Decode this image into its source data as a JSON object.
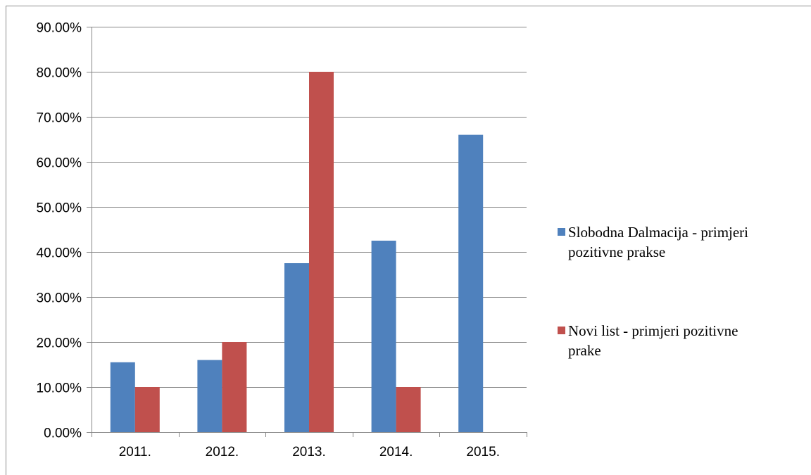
{
  "chart_data": {
    "type": "bar",
    "title": "",
    "xlabel": "",
    "ylabel": "",
    "categories": [
      "2011.",
      "2012.",
      "2013.",
      "2014.",
      "2015."
    ],
    "series": [
      {
        "name": "Slobodna Dalmacija - primjeri pozitivne prakse",
        "name_lines": [
          "Slobodna Dalmacija - primjeri",
          "pozitivne prakse"
        ],
        "color": "#4f81bd",
        "values": [
          0.155,
          0.16,
          0.375,
          0.425,
          0.66
        ]
      },
      {
        "name": "Novi list - primjeri pozitivne prake",
        "name_lines": [
          "Novi list - primjeri pozitivne",
          "prake"
        ],
        "color": "#c0504d",
        "values": [
          0.1,
          0.2,
          0.8,
          0.1,
          null
        ]
      }
    ],
    "ylim": [
      0,
      0.9
    ],
    "yticks": [
      0,
      0.1,
      0.2,
      0.3,
      0.4,
      0.5,
      0.6,
      0.7,
      0.8,
      0.9
    ],
    "ytick_labels": [
      "0.00%",
      "10.00%",
      "20.00%",
      "30.00%",
      "40.00%",
      "50.00%",
      "60.00%",
      "70.00%",
      "80.00%",
      "90.00%"
    ],
    "grid": true,
    "legend_position": "right",
    "grid_color": "#868686"
  }
}
